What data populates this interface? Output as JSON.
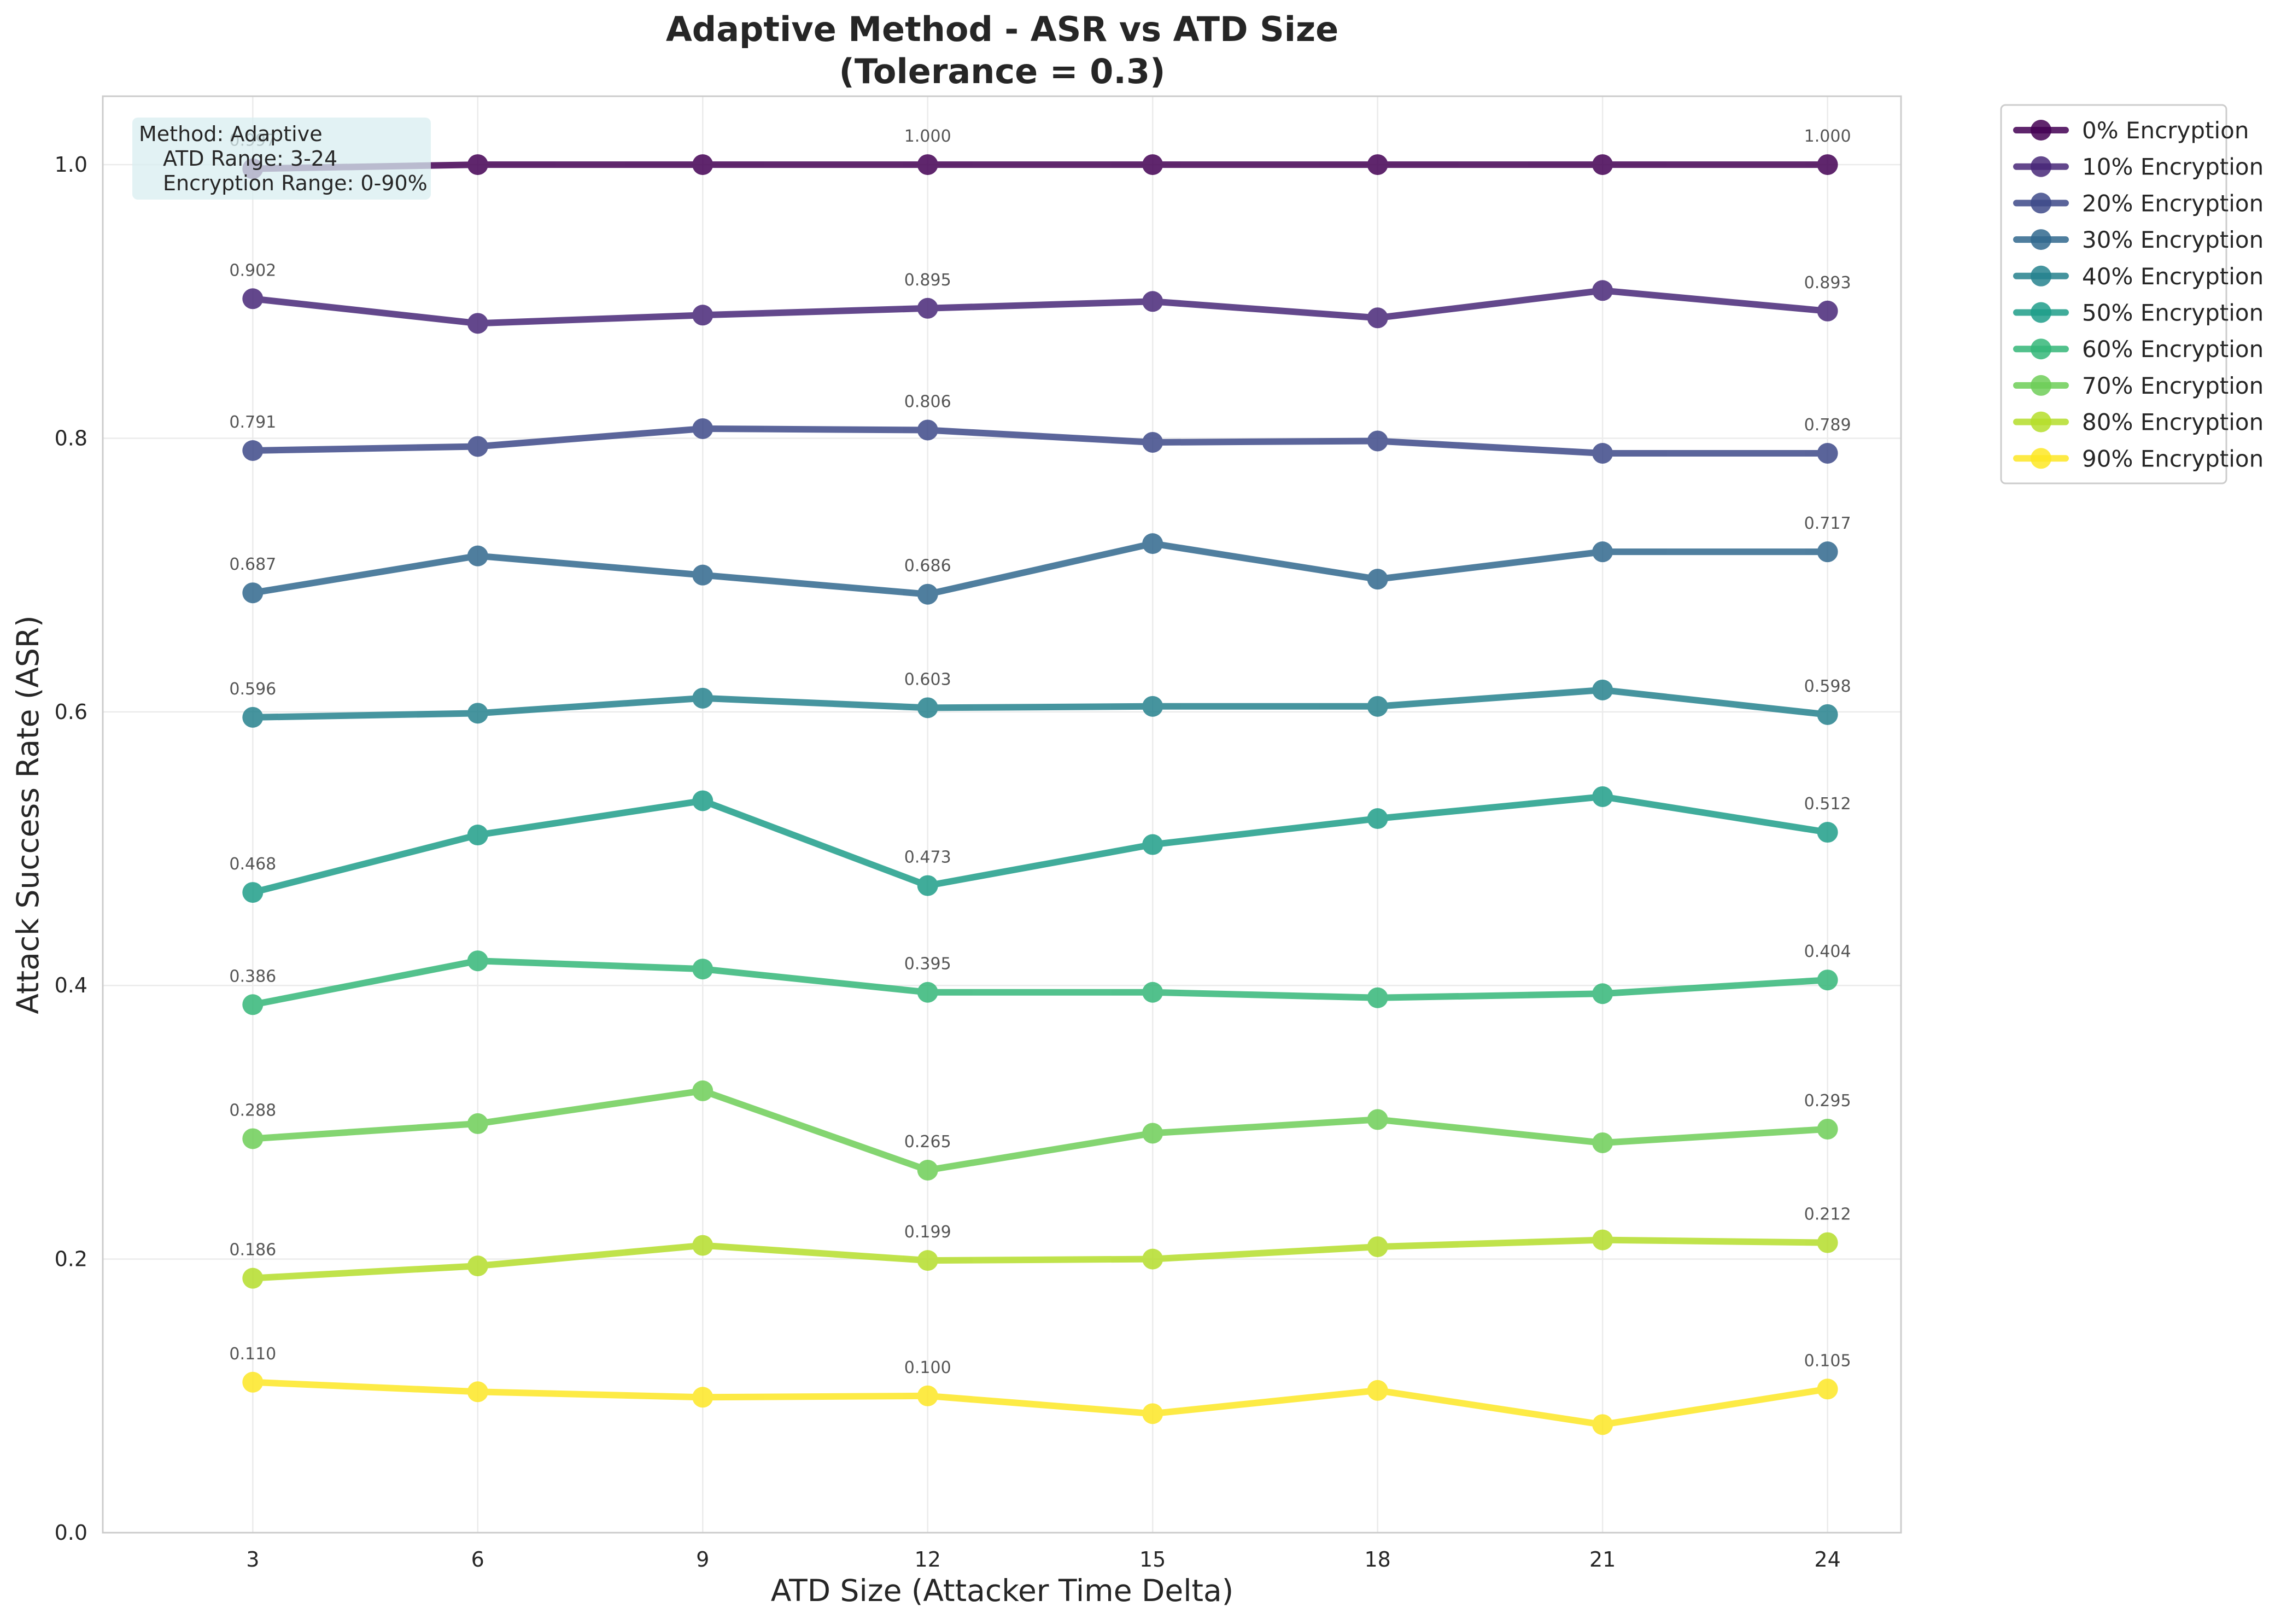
{
  "chart_data": {
    "type": "line",
    "title": "Adaptive Method - ASR vs ATD Size",
    "subtitle": "(Tolerance = 0.3)",
    "xlabel": "ATD Size (Attacker Time Delta)",
    "ylabel": "Attack Success Rate (ASR)",
    "x": [
      3,
      6,
      9,
      12,
      15,
      18,
      21,
      24
    ],
    "xlim": [
      1,
      24.98
    ],
    "ylim": [
      0,
      1.05
    ],
    "xticks": [
      "3",
      "6",
      "9",
      "12",
      "15",
      "18",
      "21",
      "24"
    ],
    "yticks": [
      "0.0",
      "0.2",
      "0.4",
      "0.6",
      "0.8",
      "1.0"
    ],
    "grid": true,
    "legend_position": "outside-top-right",
    "annotation_box": {
      "lines": [
        "Method: Adaptive",
        "ATD Range: 3-24",
        "Encryption Range: 0-90%"
      ],
      "background": "#d8eef0"
    },
    "series": [
      {
        "name": "0% Encryption",
        "color": "#440154",
        "values": [
          0.997,
          1.0,
          1.0,
          1.0,
          1.0,
          1.0,
          1.0,
          1.0
        ],
        "labels": [
          "0.997",
          "",
          "",
          "1.000",
          "",
          "",
          "",
          "1.000"
        ]
      },
      {
        "name": "10% Encryption",
        "color": "#482878",
        "values": [
          0.902,
          0.884,
          0.89,
          0.895,
          0.9,
          0.888,
          0.908,
          0.893
        ],
        "labels": [
          "0.902",
          "",
          "",
          "0.895",
          "",
          "",
          "",
          "0.893"
        ]
      },
      {
        "name": "20% Encryption",
        "color": "#3e4a89",
        "values": [
          0.791,
          0.794,
          0.807,
          0.806,
          0.797,
          0.798,
          0.789,
          0.789
        ],
        "labels": [
          "0.791",
          "",
          "",
          "0.806",
          "",
          "",
          "",
          "0.789"
        ]
      },
      {
        "name": "30% Encryption",
        "color": "#31688e",
        "values": [
          0.687,
          0.714,
          0.7,
          0.686,
          0.723,
          0.697,
          0.717,
          0.717
        ],
        "labels": [
          "0.687",
          "",
          "",
          "0.686",
          "",
          "",
          "",
          "0.717"
        ]
      },
      {
        "name": "40% Encryption",
        "color": "#26828e",
        "values": [
          0.596,
          0.599,
          0.61,
          0.603,
          0.604,
          0.604,
          0.616,
          0.598
        ],
        "labels": [
          "0.596",
          "",
          "",
          "0.603",
          "",
          "",
          "",
          "0.598"
        ]
      },
      {
        "name": "50% Encryption",
        "color": "#1f9e89",
        "values": [
          0.468,
          0.51,
          0.535,
          0.473,
          0.503,
          0.522,
          0.538,
          0.512
        ],
        "labels": [
          "0.468",
          "",
          "",
          "0.473",
          "",
          "",
          "",
          "0.512"
        ]
      },
      {
        "name": "60% Encryption",
        "color": "#35b779",
        "values": [
          0.386,
          0.418,
          0.412,
          0.395,
          0.395,
          0.391,
          0.394,
          0.404
        ],
        "labels": [
          "0.386",
          "",
          "",
          "0.395",
          "",
          "",
          "",
          "0.404"
        ]
      },
      {
        "name": "70% Encryption",
        "color": "#6ece58",
        "values": [
          0.288,
          0.299,
          0.323,
          0.265,
          0.292,
          0.302,
          0.285,
          0.295
        ],
        "labels": [
          "0.288",
          "",
          "",
          "0.265",
          "",
          "",
          "",
          "0.295"
        ]
      },
      {
        "name": "80% Encryption",
        "color": "#b5de2b",
        "values": [
          0.186,
          0.195,
          0.21,
          0.199,
          0.2,
          0.209,
          0.214,
          0.212
        ],
        "labels": [
          "0.186",
          "",
          "",
          "0.199",
          "",
          "",
          "",
          "0.212"
        ]
      },
      {
        "name": "90% Encryption",
        "color": "#fde725",
        "values": [
          0.11,
          0.103,
          0.099,
          0.1,
          0.087,
          0.104,
          0.079,
          0.105
        ],
        "labels": [
          "0.110",
          "",
          "",
          "0.100",
          "",
          "",
          "",
          "0.105"
        ]
      }
    ]
  }
}
